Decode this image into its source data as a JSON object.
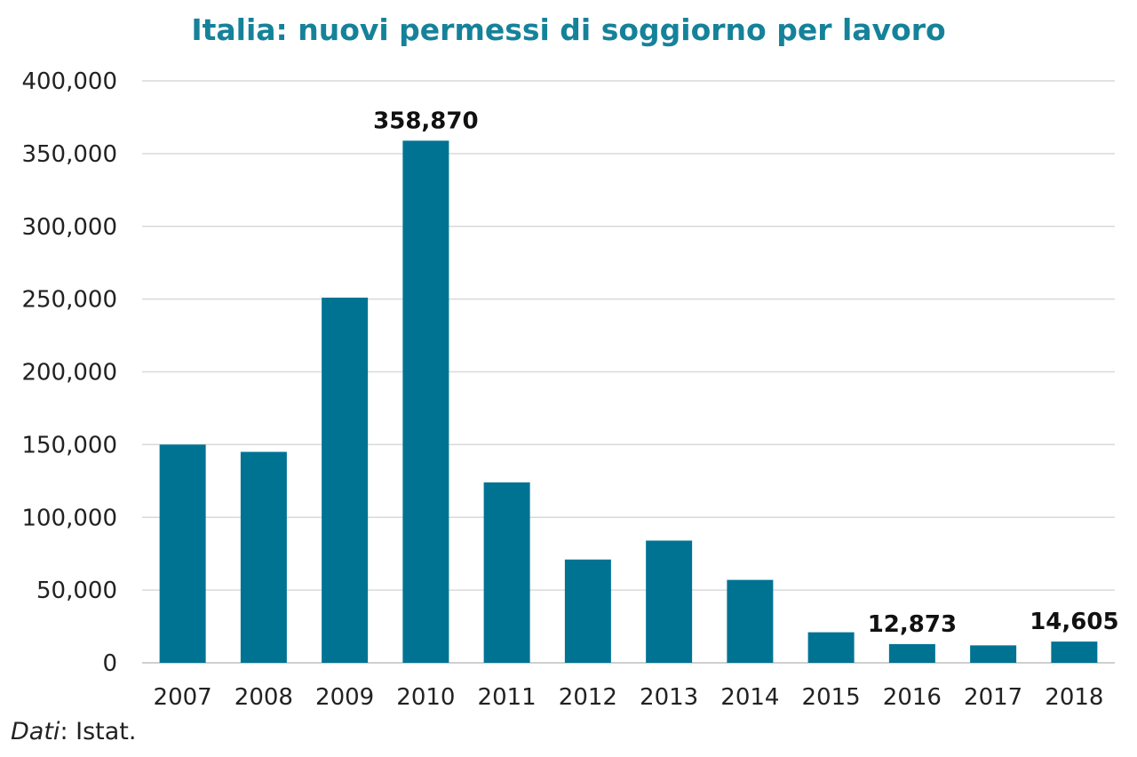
{
  "colors": {
    "bar": "#007393",
    "title": "#15829a",
    "grid": "#d9d9d9",
    "axis": "#bfbfbf"
  },
  "source": {
    "label": "Dati",
    "text": ": Istat."
  },
  "chart_data": {
    "type": "bar",
    "title": "Italia: nuovi permessi di soggiorno per lavoro",
    "xlabel": "",
    "ylabel": "",
    "categories": [
      "2007",
      "2008",
      "2009",
      "2010",
      "2011",
      "2012",
      "2013",
      "2014",
      "2015",
      "2016",
      "2017",
      "2018"
    ],
    "values": [
      150000,
      145000,
      251000,
      358870,
      124000,
      71000,
      84000,
      57000,
      21000,
      12873,
      12000,
      14605
    ],
    "ylim": [
      0,
      400000
    ],
    "yticks": [
      0,
      50000,
      100000,
      150000,
      200000,
      250000,
      300000,
      350000,
      400000
    ],
    "ytick_labels": [
      "0",
      "50,000",
      "100,000",
      "150,000",
      "200,000",
      "250,000",
      "300,000",
      "350,000",
      "400,000"
    ],
    "data_labels": [
      {
        "category": "2010",
        "text": "358,870"
      },
      {
        "category": "2016",
        "text": "12,873"
      },
      {
        "category": "2018",
        "text": "14,605"
      }
    ],
    "grid": true,
    "legend": "none"
  }
}
